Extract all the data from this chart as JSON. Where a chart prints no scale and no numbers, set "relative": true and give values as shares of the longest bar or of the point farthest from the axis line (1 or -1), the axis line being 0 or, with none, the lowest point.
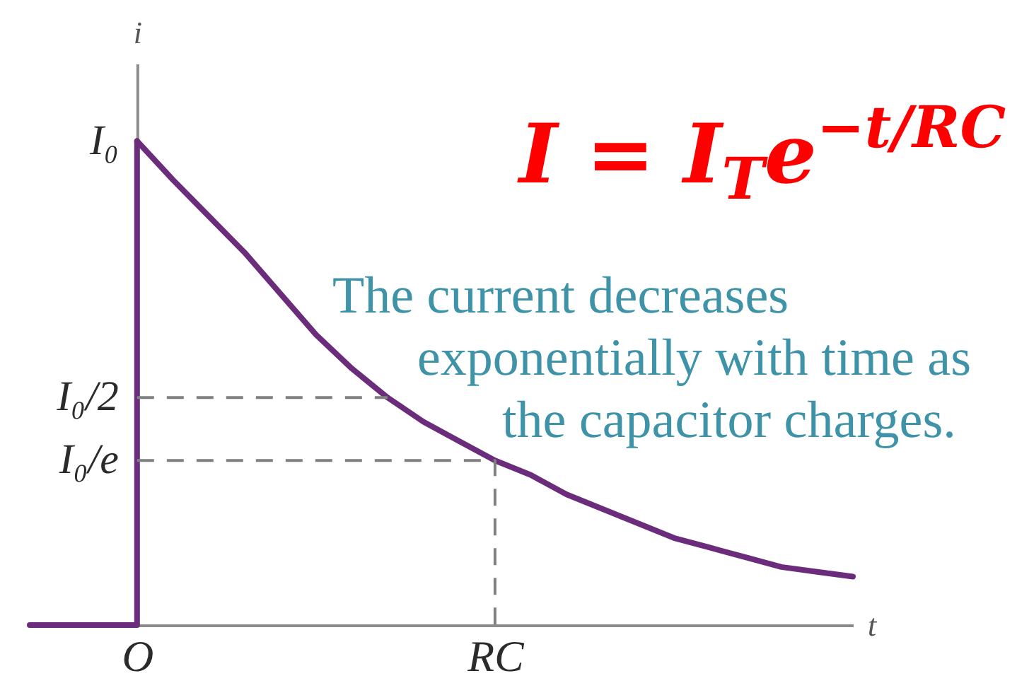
{
  "chart_data": {
    "type": "line",
    "title": "I = I$_{T}$e$^{−t/RC}$",
    "xlabel": "t",
    "ylabel": "i",
    "relative": true,
    "annotations": [
      "The current decreases exponentially with time as the capacitor charges.",
      {
        "text": "I₀",
        "x": "O",
        "y": 1
      },
      {
        "text": "I₀/2",
        "x": "O",
        "y": 0.47
      },
      {
        "text": "I₀/e",
        "x": "O",
        "y": 0.34
      }
    ],
    "categories": [
      null,
      null,
      null,
      "O",
      null,
      null,
      null,
      null,
      null,
      null,
      null,
      null,
      null,
      "RC",
      null,
      null,
      null,
      null,
      null,
      null,
      null,
      null,
      null,
      null
    ],
    "line_style": "solid",
    "series": [
      {
        "type": "step",
        "color": "#6b2d7b",
        "values": [
          0,
          0,
          0,
          1,
          null,
          null,
          null,
          null,
          null,
          null,
          null,
          null,
          null,
          null,
          null,
          null,
          null,
          null,
          null,
          null,
          null,
          null,
          null,
          null
        ]
      },
      {
        "color": "#6b2d7b",
        "values": [
          null,
          null,
          null,
          1,
          0.92,
          0.845,
          0.77,
          0.685,
          0.6,
          0.53,
          0.47,
          0.42,
          0.38,
          0.34,
          0.31,
          0.27,
          0.24,
          0.21,
          0.18,
          0.16,
          0.14,
          0.12,
          0.11,
          0.1
        ]
      },
      {
        "color": "#808080",
        "line_style": "dashed",
        "values": [
          null,
          null,
          null,
          0.47,
          0.47,
          0.47,
          0.47,
          0.47,
          0.47,
          0.47,
          0.47,
          null,
          null,
          null,
          null,
          null,
          null,
          null,
          null,
          null,
          null,
          null,
          null,
          null
        ]
      },
      {
        "type": "step",
        "color": "#808080",
        "line_style": "dashed",
        "values": [
          null,
          null,
          null,
          0.34,
          0.34,
          0.34,
          0.34,
          0.34,
          0.34,
          0.34,
          0.34,
          0.34,
          0.34,
          0,
          null,
          null,
          null,
          null,
          null,
          null,
          null,
          null,
          null,
          null
        ]
      }
    ]
  }
}
